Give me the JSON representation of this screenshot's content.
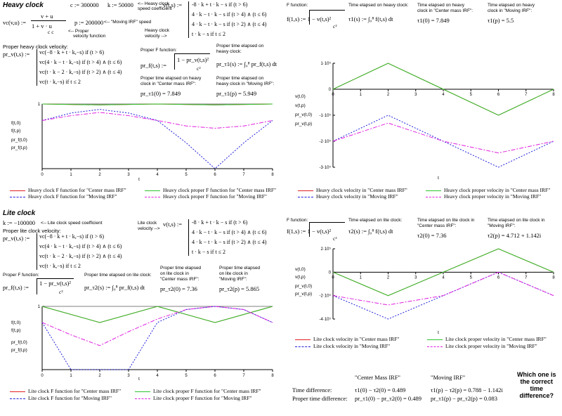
{
  "colors": {
    "red": "#e02020",
    "green": "#2cc42c",
    "blue": "#2020d8",
    "magenta": "#e020e0"
  },
  "heavy": {
    "title": "Heavy clock",
    "c_def": "c := 300000",
    "k_def": "k := 50000",
    "k_note1": "<-- Heavy clock",
    "k_note2": "speed coefficient",
    "vc_lhs": "vc(v,u) :=",
    "vc_num": "v + u",
    "vc_den": "1 +  v · u",
    "vc_den2": "c    c",
    "vc_note1": "<-- Proper",
    "vc_note2": "velocity function",
    "p_def": "p := 200000",
    "p_note": "<-- \"Moving IRF\" speed",
    "v_note1": "Heavy clock",
    "v_note2": "velocity -->",
    "v_lhs": "v(t,s) :=",
    "v_cases": [
      "-8 · k + t · k − s  if  (t > 6)",
      "4 · k − t · k − s  if  (t > 4) ∧ (t ≤ 6)",
      "4 · k − t · k − s  if  (t > 2) ∧ (t ≤ 4)",
      "t · k − s  if  t ≤ 2"
    ],
    "prv_head": "Proper heavy clock velocity:",
    "prv_lhs": "pr_v(t,s) :=",
    "prv_cases": [
      "vc(−8 · k + t · k,−s)  if  (t > 6)",
      "vc(4 · k − t · k,−s)  if  (t > 4) ∧ (t ≤ 6)",
      "vc(t · k − 2 · k,−s)  if  (t > 2) ∧ (t ≤ 4)",
      "vc(t · k,−s)  if  t ≤ 2"
    ],
    "prf_head": "Proper F function:",
    "prf_lhs": "pr_f(t,s) :=",
    "prf_expr": "1 −  pr_v(t,s)²",
    "prf_c2": "c²",
    "prtau_head1": "Proper time elapsed on",
    "prtau_head2": "heavy clock:",
    "prtau_expr": "pr_τ1(s) := ∫₀⁸ pr_f(t,s) dt",
    "prtau0_head1": "Proper time elapsed on heavy",
    "prtau0_head2": "clock in \"Center mass IRF\":",
    "prtau0_val": "pr_τ1(0) = 7.849",
    "prtaup_head1": "Proper time elapsed on",
    "prtaup_head2": "heavy clock in \"Moving IRF\":",
    "prtaup_val": "pr_τ1(p) = 5.949",
    "f_head": "F function:",
    "f_expr": "f(1,s) :=  1 −  v(t,s)²",
    "f_c2": "c²",
    "tau_head": "Time elapsed on heavy clock:",
    "tau_expr": "τ1(s) := ∫₀⁸ f(t,s) dt",
    "tau0_head1": "Time elapsed on heavy",
    "tau0_head2": "clock in \"Center mass IRF\":",
    "tau0_val": "τ1(0) = 7.849",
    "taup_head1": "Time elapsed on heavy",
    "taup_head2": "clock in \"Moving IRF\":",
    "taup_val": "τ1(p) = 5.5"
  },
  "lite": {
    "title": "Lite clock",
    "k_def": "k := −100000",
    "k_note": "<-- Lite clock speed coefficient",
    "prv_head": "Proper lite clock velocity:",
    "prv_lhs": "pr_v(t,s) :=",
    "prv_cases": [
      "vc(−8 · k + t · k,−s)  if  (t > 6)",
      "vc(4 · k − t · k,−s)  if  (t > 4) ∧ (t ≤ 6)",
      "vc(t · k − 2 · k,−s)  if  (t > 2) ∧ (t ≤ 4)",
      "vc(t · k,−s)  if  t ≤ 2"
    ],
    "v_note1": "Lite clock",
    "v_note2": "velocity -->",
    "v_lhs": "v(t,s) :=",
    "v_cases": [
      "-8 · k + t · k − s  if  (t > 6)",
      "4 · k − t · k − s  if  (t > 4) ∧ (t ≤ 6)",
      "4 · k − t · k − s  if  (t > 2) ∧ (t ≤ 4)",
      "t · k − s  if  t ≤ 2"
    ],
    "prf_head": "Proper F function:",
    "prf_lhs": "pr_f(t,s) :=",
    "prf_expr": "1 −  pr_v(t,s)²",
    "prf_c2": "c²",
    "prtau_head": "Proper time elapsed on lite clock:",
    "prtau_expr": "pr_τ2(s) := ∫₀⁸ pr_f(t,s) dt",
    "prtau0_head1": "Proper time elapsed",
    "prtau0_head2": "on lite clock in",
    "prtau0_head3": "\"Center mass IRF\":",
    "prtau0_val": "pr_τ2(0) = 7.36",
    "prtaup_head1": "Proper time elapsed",
    "prtaup_head2": "on lite clock in",
    "prtaup_head3": "\"Moving IRF\":",
    "prtaup_val": "pr_τ2(p) = 5.865",
    "f_head": "F function:",
    "f_expr": "f(1,s) :=  1 −  v(t,s)²",
    "f_c2": "c²",
    "tau_head": "Time elapsed on lite clock:",
    "tau_expr": "τ2(s) := ∫₀⁸ f(t,s) dt",
    "tau0_head1": "Time elapsed on lite clock in",
    "tau0_head2": "\"Center mass IRF\":",
    "tau0_val": "τ2(0) = 7.36",
    "taup_head1": "Time elapsed on lite clock in",
    "taup_head2": "\"Moving IRF\":",
    "taup_val": "τ2(p) = 4.712 + 1.142i"
  },
  "summary": {
    "col1": "\"Center Mass IRF\"",
    "col2": "\"Moving IRF\"",
    "row1_label": "Time difference:",
    "row1_c1": "τ1(0) − τ2(0) = 0.489",
    "row1_c2": "τ1(p) − τ2(p) = 0.788 − 1.142i",
    "row2_label": "Proper time difference:",
    "row2_c1": "pr_τ1(0) − pr_τ2(0) = 0.489",
    "row2_c2": "pr_τ1(p) − pr_τ2(p) = 0.083",
    "question1": "Which one is",
    "question2": "the correct",
    "question3": "time",
    "question4": "difference?"
  },
  "plots": {
    "hf": {
      "ylabels": [
        "f(t,0)",
        "f(t,p)",
        "pr_f(t,0)",
        "pr_f(t,p)"
      ],
      "legend": [
        "Heavy clock F function for \"Center mass IRF\"",
        "Heavy clock F function for \"Moving IRF\"",
        "Heavy clock proper F function for \"Center mass IRF\"",
        "Heavy clock proper F function for \"Moving IRF\""
      ]
    },
    "hv": {
      "ylabels": [
        "v(t,0)",
        "v(t,p)",
        "pr_v(t,0)",
        "pr_v(t,p)"
      ],
      "legend": [
        "Heavy clock velocity in \"Center mass IRF\"",
        "Heavy clock velocity in \"Moving IRF\"",
        "Heavy clock proper velocity in \"Center mass IRF\"",
        "Heavy clock proper velocity in \"Moving IRF\""
      ]
    },
    "lf": {
      "ylabels": [
        "f(t,0)",
        "f(t,p)",
        "pr_f(t,0)",
        "pr_f(t,p)"
      ],
      "legend": [
        "Lite clock F function for \"Center mass IRF\"",
        "Lite clock F function for \"Moving IRF\"",
        "Lite clock proper F function for \"Center mass IRF\"",
        "Lite clock proper F function for \"Moving IRF\""
      ]
    },
    "lv": {
      "ylabels": [
        "v(t,0)",
        "v(t,p)",
        "pr_v(t,0)",
        "pr_v(t,p)"
      ],
      "legend": [
        "Lite clock velocity in \"Center mass IRF\"",
        "Lite clock velocity in \"Moving IRF\"",
        "Lite clock proper velocity in \"Center mass IRF\"",
        "Lite clock proper velocity in \"Moving IRF\""
      ]
    }
  },
  "chart_data": [
    {
      "type": "line",
      "id": "heavy-f",
      "xlabel": "t",
      "xlim": [
        0,
        8
      ],
      "ylim": [
        0,
        1
      ],
      "yticks": [
        "1"
      ],
      "xticks": [
        "0",
        "1",
        "2",
        "3",
        "4",
        "5",
        "6",
        "7",
        "8"
      ],
      "series": [
        {
          "name": "Heavy clock F function for \"Center mass IRF\"",
          "x": [
            0,
            2,
            4,
            6,
            8
          ],
          "y": [
            1,
            0.986,
            1,
            0.986,
            1
          ]
        },
        {
          "name": "Heavy clock F function for \"Moving IRF\"",
          "x": [
            0,
            1,
            2,
            3,
            4,
            5,
            6,
            7,
            8
          ],
          "y": [
            0.745,
            0.86,
            0.917,
            0.86,
            0.745,
            0.4,
            0,
            0.4,
            0.745
          ]
        },
        {
          "name": "Heavy clock proper F function for \"Center mass IRF\"",
          "x": [
            0,
            2,
            4,
            6,
            8
          ],
          "y": [
            1,
            0.986,
            1,
            0.986,
            1
          ]
        },
        {
          "name": "Heavy clock proper F function for \"Moving IRF\"",
          "x": [
            0,
            1,
            2,
            3,
            4,
            5,
            6,
            7,
            8
          ],
          "y": [
            0.745,
            0.82,
            0.87,
            0.82,
            0.745,
            0.66,
            0.625,
            0.66,
            0.745
          ]
        }
      ]
    },
    {
      "type": "line",
      "id": "heavy-v",
      "xlabel": "t",
      "xlim": [
        0,
        8
      ],
      "ylim": [
        -300000,
        100000
      ],
      "yticks": [
        "1·10⁵",
        "0",
        "-1·10⁵",
        "-2·10⁵",
        "-3·10⁵"
      ],
      "xticks": [
        "0",
        "1",
        "2",
        "3",
        "4",
        "5",
        "6",
        "7",
        "8"
      ],
      "series": [
        {
          "name": "Heavy clock velocity in \"Center mass IRF\"",
          "x": [
            0,
            2,
            4,
            6,
            8
          ],
          "y": [
            0,
            100000,
            0,
            -100000,
            0
          ]
        },
        {
          "name": "Heavy clock velocity in \"Moving IRF\"",
          "x": [
            0,
            2,
            4,
            6,
            8
          ],
          "y": [
            -200000,
            -100000,
            -200000,
            -300000,
            -200000
          ]
        },
        {
          "name": "Heavy clock proper velocity in \"Center mass IRF\"",
          "x": [
            0,
            2,
            4,
            6,
            8
          ],
          "y": [
            0,
            100000,
            0,
            -100000,
            0
          ]
        },
        {
          "name": "Heavy clock proper velocity in \"Moving IRF\"",
          "x": [
            0,
            2,
            4,
            6,
            8
          ],
          "y": [
            -200000,
            -130000,
            -200000,
            -245000,
            -200000
          ]
        }
      ]
    },
    {
      "type": "line",
      "id": "lite-f",
      "xlabel": "t",
      "xlim": [
        0,
        8
      ],
      "ylim": [
        0,
        1
      ],
      "yticks": [
        "1"
      ],
      "xticks": [
        "0",
        "1",
        "2",
        "3",
        "4",
        "5",
        "6",
        "7",
        "8"
      ],
      "series": [
        {
          "name": "Lite clock F function for \"Center mass IRF\"",
          "x": [
            0,
            2,
            4,
            6,
            8
          ],
          "y": [
            1,
            0.745,
            1,
            0.745,
            1
          ]
        },
        {
          "name": "Lite clock F function for \"Moving IRF\"",
          "x": [
            0,
            1,
            2,
            3,
            4,
            5,
            6,
            7,
            8
          ],
          "y": [
            0.745,
            0,
            0,
            0,
            0.745,
            0.95,
            1,
            0.95,
            0.745
          ]
        },
        {
          "name": "Lite clock proper F function for \"Center mass IRF\"",
          "x": [
            0,
            2,
            4,
            6,
            8
          ],
          "y": [
            1,
            0.745,
            1,
            0.745,
            1
          ]
        },
        {
          "name": "Lite clock proper F function for \"Moving IRF\"",
          "x": [
            0,
            1,
            2,
            3,
            4,
            5,
            6,
            7,
            8
          ],
          "y": [
            0.745,
            0.55,
            0.38,
            0.6,
            0.8,
            0.95,
            1,
            0.95,
            0.745
          ]
        }
      ]
    },
    {
      "type": "line",
      "id": "lite-v",
      "xlabel": "t",
      "xlim": [
        0,
        8
      ],
      "ylim": [
        -400000,
        200000
      ],
      "yticks": [
        "2·10⁵",
        "0",
        "-2·10⁵",
        "-4·10⁵"
      ],
      "xticks": [
        "0",
        "1",
        "2",
        "3",
        "4",
        "5",
        "6",
        "7",
        "8"
      ],
      "series": [
        {
          "name": "Lite clock velocity in \"Center mass IRF\"",
          "x": [
            0,
            2,
            4,
            6,
            8
          ],
          "y": [
            0,
            -200000,
            0,
            200000,
            0
          ]
        },
        {
          "name": "Lite clock velocity in \"Moving IRF\"",
          "x": [
            0,
            2,
            4,
            6,
            8
          ],
          "y": [
            -200000,
            -400000,
            -200000,
            0,
            -200000
          ]
        },
        {
          "name": "Lite clock proper velocity in \"Center mass IRF\"",
          "x": [
            0,
            2,
            4,
            6,
            8
          ],
          "y": [
            0,
            -200000,
            0,
            200000,
            0
          ]
        },
        {
          "name": "Lite clock proper velocity in \"Moving IRF\"",
          "x": [
            0,
            2,
            4,
            6,
            8
          ],
          "y": [
            -200000,
            -280000,
            -200000,
            0,
            -200000
          ]
        }
      ]
    }
  ]
}
